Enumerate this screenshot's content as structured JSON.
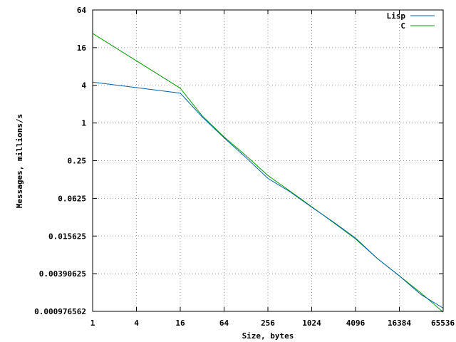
{
  "chart_data": {
    "type": "line",
    "title": "",
    "xlabel": "Size, bytes",
    "ylabel": "Messages, millions/s",
    "x_scale": "log2",
    "y_scale": "log2",
    "xlim": [
      1,
      65536
    ],
    "ylim": [
      0.000976562,
      64
    ],
    "x_ticks": [
      1,
      4,
      16,
      64,
      256,
      1024,
      4096,
      16384,
      65536
    ],
    "x_tick_labels": [
      "1",
      "4",
      "16",
      "64",
      "256",
      "1024",
      "4096",
      "16384",
      "65536"
    ],
    "y_ticks": [
      0.000976562,
      0.00390625,
      0.015625,
      0.0625,
      0.25,
      1,
      4,
      16,
      64
    ],
    "y_tick_labels": [
      "0.000976562",
      "0.00390625",
      "0.015625",
      "0.0625",
      "0.25",
      "1",
      "4",
      "16",
      "64"
    ],
    "grid": true,
    "legend_position": "top-right",
    "series": [
      {
        "name": "Lisp",
        "color": "#0060ad",
        "x": [
          1,
          16,
          32,
          64,
          128,
          256,
          512,
          1024,
          2048,
          4096,
          8192,
          16384,
          32768,
          65536
        ],
        "y": [
          4.5,
          3.0,
          1.25,
          0.58,
          0.28,
          0.13,
          0.08,
          0.045,
          0.026,
          0.0145,
          0.0068,
          0.0036,
          0.0018,
          0.0011
        ]
      },
      {
        "name": "C",
        "color": "#009e00",
        "x": [
          1,
          16,
          32,
          64,
          128,
          256,
          512,
          1024,
          2048,
          4096,
          8192,
          16384,
          32768,
          65536
        ],
        "y": [
          27,
          3.6,
          1.3,
          0.6,
          0.3,
          0.145,
          0.082,
          0.046,
          0.0255,
          0.014,
          0.0068,
          0.0036,
          0.0019,
          0.00095
        ]
      }
    ]
  }
}
